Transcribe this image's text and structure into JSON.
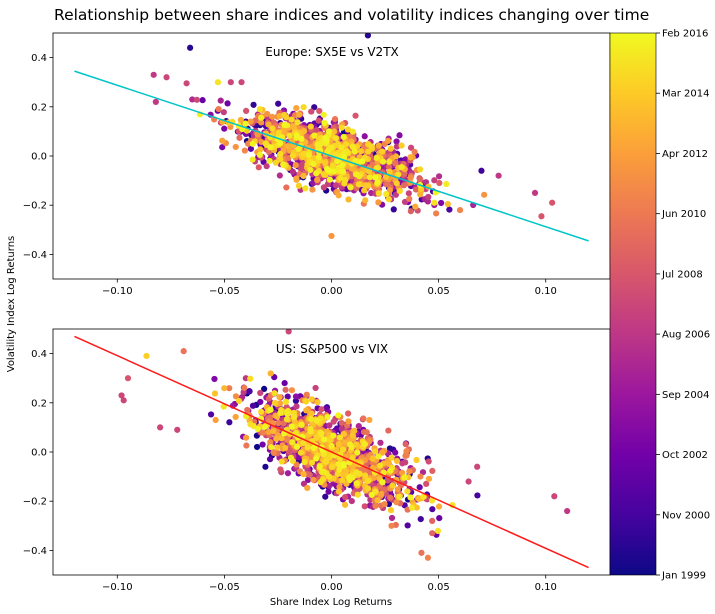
{
  "figure_title": "Relationship between share indices and volatility indices changing over time",
  "chart_data": {
    "type": "scatter",
    "title": "Relationship between share indices and volatility indices changing over time",
    "xlabel": "Share Index Log Returns",
    "ylabel": "Volatility Index Log Returns",
    "xlim": [
      -0.13,
      0.13
    ],
    "ylim": [
      -0.5,
      0.5
    ],
    "x_ticks": [
      -0.1,
      -0.05,
      0.0,
      0.05,
      0.1
    ],
    "x_tick_labels": [
      "−0.10",
      "−0.05",
      "0.00",
      "0.05",
      "0.10"
    ],
    "y_ticks": [
      -0.4,
      -0.2,
      0.0,
      0.2,
      0.4
    ],
    "y_tick_labels": [
      "−0.4",
      "−0.2",
      "0.0",
      "0.2",
      "0.4"
    ],
    "grid": false,
    "colorbar": {
      "colormap": "plasma",
      "ticks": [
        "Jan 1999",
        "Nov 2000",
        "Oct 2002",
        "Sep 2004",
        "Aug 2006",
        "Jul 2008",
        "Jun 2010",
        "Apr 2012",
        "Mar 2014",
        "Feb 2016"
      ],
      "colors": [
        "#0d0887",
        "#46039f",
        "#7201a8",
        "#9c179e",
        "#bd3786",
        "#d8576b",
        "#ed7953",
        "#fb9f3a",
        "#fdca26",
        "#f0f921"
      ]
    },
    "panels": [
      {
        "annotation": "Europe: SX5E vs V2TX",
        "fit_line": {
          "x": [
            -0.12,
            0.12
          ],
          "y": [
            0.345,
            -0.345
          ],
          "color": "#00c5c8"
        },
        "cloud": {
          "center_x": 0.0,
          "center_y": 0.0,
          "beta": -2.5,
          "spread_x": 0.02,
          "noise_y": 0.06
        },
        "points": [
          {
            "x": -0.066,
            "y": 0.44,
            "t": 0.05
          },
          {
            "x": -0.083,
            "y": 0.33,
            "t": 0.45
          },
          {
            "x": -0.077,
            "y": 0.32,
            "t": 0.5
          },
          {
            "x": -0.082,
            "y": 0.22,
            "t": 0.45
          },
          {
            "x": 0.017,
            "y": 0.49,
            "t": 0.05
          },
          {
            "x": -0.053,
            "y": 0.3,
            "t": 0.95
          },
          {
            "x": -0.047,
            "y": 0.3,
            "t": 0.5
          },
          {
            "x": -0.042,
            "y": 0.3,
            "t": 0.5
          },
          {
            "x": 0.0,
            "y": -0.325,
            "t": 0.75
          },
          {
            "x": 0.098,
            "y": -0.245,
            "t": 0.55
          },
          {
            "x": 0.103,
            "y": -0.19,
            "t": 0.55
          },
          {
            "x": 0.095,
            "y": -0.15,
            "t": 0.45
          },
          {
            "x": 0.078,
            "y": -0.08,
            "t": 0.45
          },
          {
            "x": 0.07,
            "y": -0.06,
            "t": 0.1
          },
          {
            "x": 0.06,
            "y": -0.22,
            "t": 0.7
          },
          {
            "x": 0.048,
            "y": -0.19,
            "t": 0.95
          },
          {
            "x": -0.065,
            "y": 0.23,
            "t": 0.4
          }
        ]
      },
      {
        "annotation": "US: S&P500 vs VIX",
        "fit_line": {
          "x": [
            -0.12,
            0.12
          ],
          "y": [
            0.47,
            -0.47
          ],
          "color": "#ff1a1a"
        },
        "cloud": {
          "center_x": 0.0,
          "center_y": 0.0,
          "beta": -3.9,
          "spread_x": 0.018,
          "noise_y": 0.07
        },
        "points": [
          {
            "x": -0.098,
            "y": 0.23,
            "t": 0.5
          },
          {
            "x": -0.097,
            "y": 0.21,
            "t": 0.5
          },
          {
            "x": -0.095,
            "y": 0.3,
            "t": 0.55
          },
          {
            "x": -0.069,
            "y": 0.41,
            "t": 0.65
          },
          {
            "x": -0.02,
            "y": 0.49,
            "t": 0.5
          },
          {
            "x": -0.04,
            "y": 0.3,
            "t": 0.45
          },
          {
            "x": -0.08,
            "y": 0.1,
            "t": 0.5
          },
          {
            "x": 0.104,
            "y": -0.18,
            "t": 0.5
          },
          {
            "x": 0.11,
            "y": -0.24,
            "t": 0.45
          },
          {
            "x": 0.047,
            "y": -0.28,
            "t": 0.6
          },
          {
            "x": 0.047,
            "y": -0.33,
            "t": 0.6
          },
          {
            "x": 0.042,
            "y": -0.41,
            "t": 0.65
          },
          {
            "x": 0.028,
            "y": -0.3,
            "t": 0.7
          },
          {
            "x": 0.064,
            "y": -0.12,
            "t": 0.5
          },
          {
            "x": 0.068,
            "y": -0.06,
            "t": 0.5
          },
          {
            "x": -0.072,
            "y": 0.09,
            "t": 0.5
          },
          {
            "x": 0.045,
            "y": -0.43,
            "t": 0.7
          }
        ]
      }
    ]
  }
}
